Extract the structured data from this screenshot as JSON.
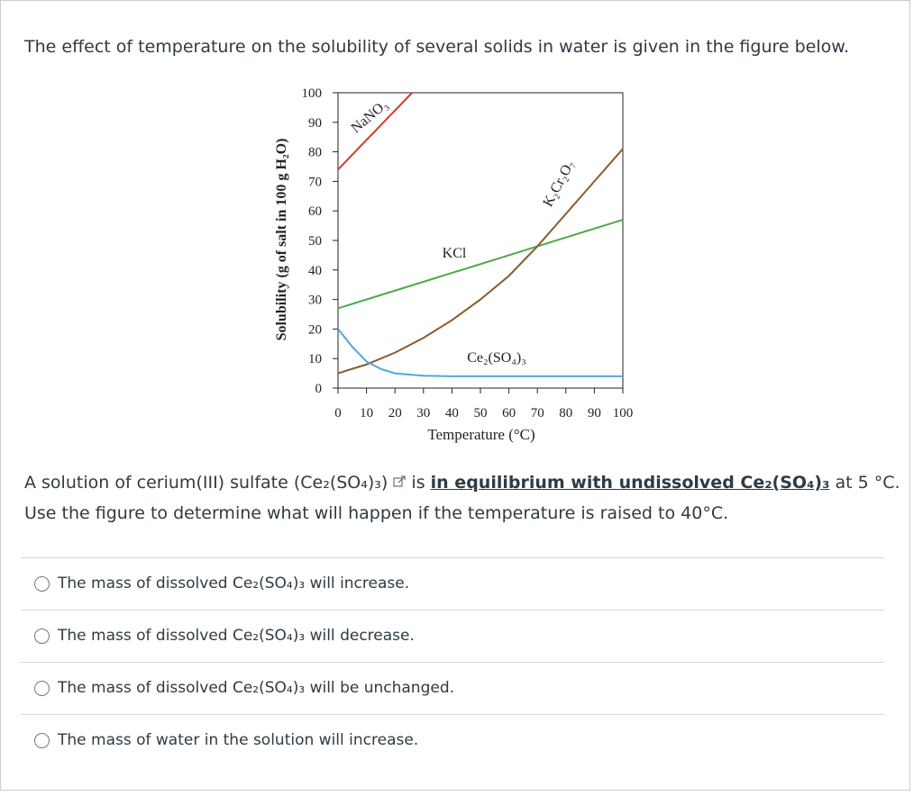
{
  "intro": "The effect of temperature on the solubility of several solids in water is given in the figure below.",
  "chart_data": {
    "type": "line",
    "x_label": "Temperature (°C)",
    "y_label": "Solubility (g of salt in 100 g H₂O)",
    "xlim": [
      0,
      100
    ],
    "xticks": [
      0,
      10,
      20,
      30,
      40,
      50,
      60,
      70,
      80,
      90,
      100
    ],
    "ylim": [
      0,
      100
    ],
    "yticks": [
      0,
      10,
      20,
      30,
      40,
      50,
      60,
      70,
      80,
      90,
      100
    ],
    "series": [
      {
        "name": "NaNO₃",
        "color": "#d23a2f",
        "x": [
          0,
          10,
          20,
          26
        ],
        "values": [
          74,
          84,
          94,
          100
        ]
      },
      {
        "name": "KCl",
        "color": "#4fa84a",
        "x": [
          0,
          20,
          40,
          60,
          80,
          100
        ],
        "values": [
          27,
          33,
          39,
          45,
          51,
          57
        ]
      },
      {
        "name": "K₂Cr₂O₇",
        "color": "#8a5a2c",
        "x": [
          0,
          10,
          20,
          30,
          40,
          50,
          60,
          70,
          80,
          90,
          100
        ],
        "values": [
          5,
          8,
          12,
          17,
          23,
          30,
          38,
          48,
          59,
          70,
          81
        ]
      },
      {
        "name": "Ce₂(SO₄)₃",
        "color": "#4ea9d6",
        "x": [
          0,
          5,
          10,
          15,
          20,
          30,
          40,
          60,
          80,
          100
        ],
        "values": [
          20,
          14,
          9,
          6.5,
          5,
          4.2,
          4,
          4,
          4,
          4
        ]
      }
    ]
  },
  "question": {
    "part1": "A solution of cerium(III) sulfate (Ce₂(SO₄)₃)",
    "part2": "is",
    "link": "in equilibrium with undissolved Ce₂(SO₄)₃",
    "part3": "at 5 °C.",
    "line2": "Use the figure to determine what will happen if the temperature is raised to 40°C."
  },
  "options": [
    "The mass of dissolved Ce₂(SO₄)₃ will increase.",
    "The mass of dissolved Ce₂(SO₄)₃ will decrease.",
    "The mass of dissolved Ce₂(SO₄)₃ will be unchanged.",
    "The mass of water in the solution will increase."
  ]
}
